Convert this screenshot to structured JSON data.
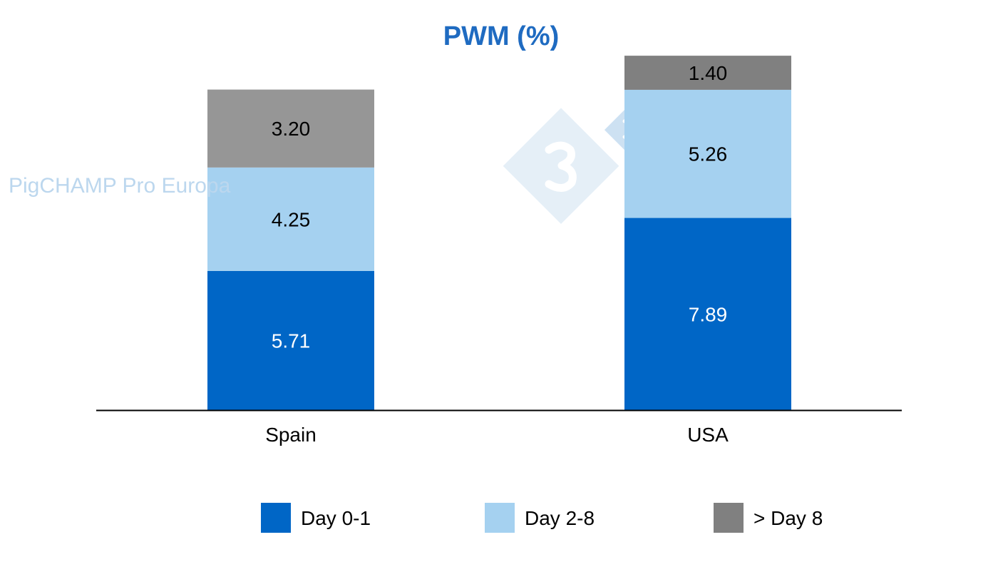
{
  "chart_data": {
    "type": "bar",
    "stacked": true,
    "title": "PWM (%)",
    "xlabel": "",
    "ylabel": "",
    "categories": [
      "Spain",
      "USA"
    ],
    "series": [
      {
        "name": "Day 0-1",
        "values": [
          5.71,
          7.89
        ],
        "color": "#0066C6",
        "label_color": "#FFFFFF"
      },
      {
        "name": "Day 2-8",
        "values": [
          4.25,
          5.26
        ],
        "color": "#A5D1F0",
        "label_color": "#000000"
      },
      {
        "name": "> Day 8",
        "values": [
          3.2,
          1.4
        ],
        "colors": [
          "#969696",
          "#808080"
        ],
        "color": "#808080",
        "label_color": "#000000"
      }
    ],
    "data_labels": [
      [
        "5.71",
        "7.89"
      ],
      [
        "4.25",
        "5.26"
      ],
      [
        "3.20",
        "1.40"
      ]
    ],
    "ylim": [
      0,
      14.6
    ],
    "grid": false,
    "legend_position": "bottom"
  },
  "watermark": {
    "text": "PigCHAMP Pro Europa",
    "logo": "333"
  }
}
